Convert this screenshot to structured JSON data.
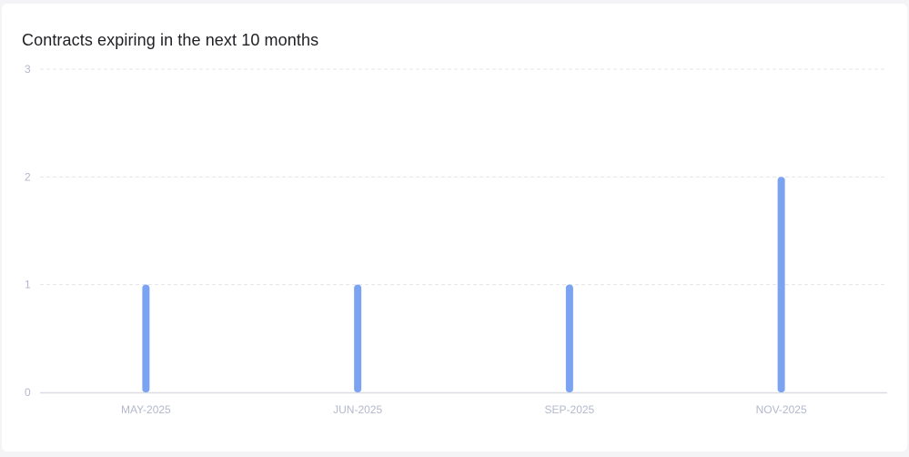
{
  "chart_data": {
    "type": "bar",
    "title": "Contracts expiring in the next 10 months",
    "categories": [
      "MAY-2025",
      "JUN-2025",
      "SEP-2025",
      "NOV-2025"
    ],
    "values": [
      1,
      1,
      1,
      2
    ],
    "ylim": [
      0,
      3
    ],
    "yticks": [
      "0",
      "1",
      "2",
      "3"
    ],
    "grid": true,
    "bar_color": "#7ba3f2"
  }
}
